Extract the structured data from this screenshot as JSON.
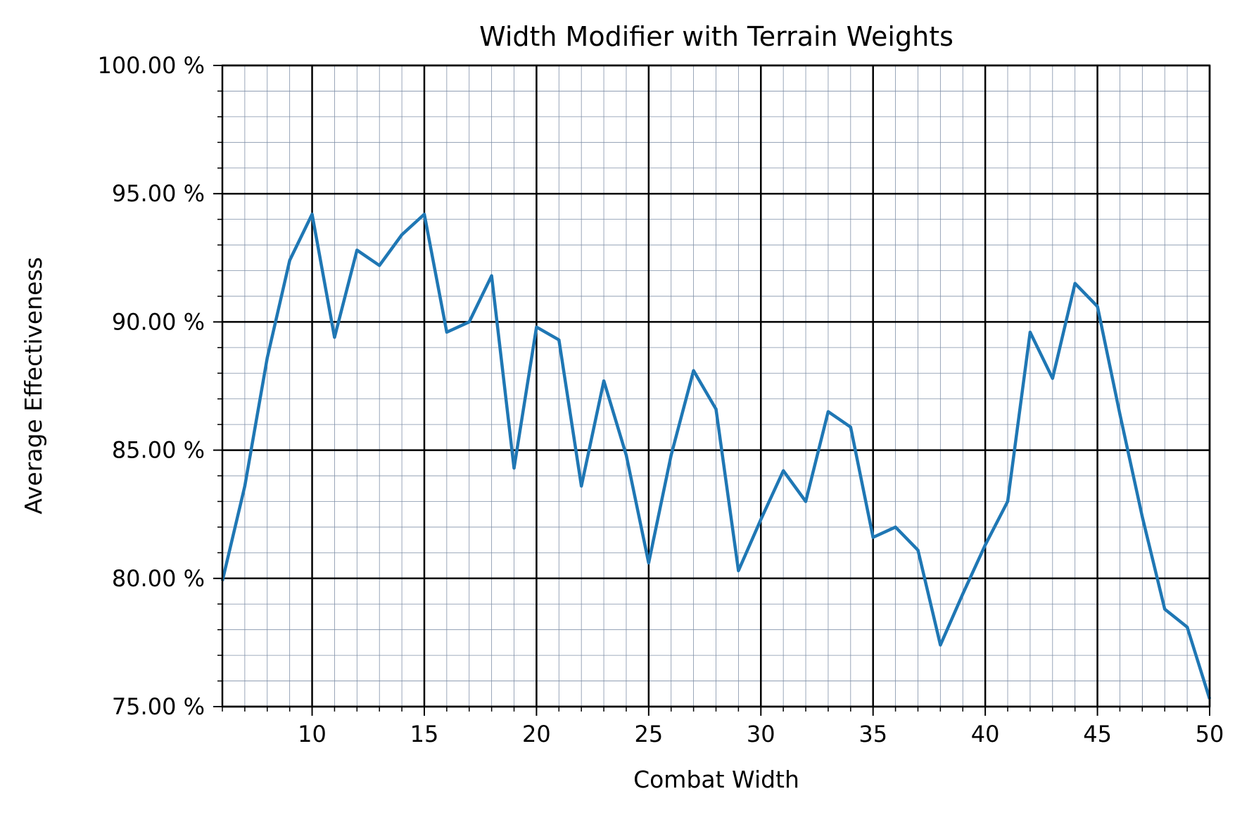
{
  "chart_data": {
    "type": "line",
    "title": "Width Modifier with Terrain Weights",
    "xlabel": "Combat Width",
    "ylabel": "Average Effectiveness",
    "xlim": [
      6,
      50
    ],
    "ylim": [
      75,
      100
    ],
    "x_ticks": [
      10,
      15,
      20,
      25,
      30,
      35,
      40,
      45,
      50
    ],
    "x_tick_labels": [
      "10",
      "15",
      "20",
      "25",
      "30",
      "35",
      "40",
      "45",
      "50"
    ],
    "y_ticks": [
      75,
      80,
      85,
      90,
      95,
      100
    ],
    "y_tick_labels": [
      "75.00 %",
      "80.00 %",
      "85.00 %",
      "90.00 %",
      "95.00 %",
      "100.00 %"
    ],
    "grid": "major and minor",
    "colors": {
      "series": "#1f77b4",
      "major_grid": "#000000",
      "minor_grid": "#8090a8"
    },
    "series": [
      {
        "x": [
          6,
          7,
          8,
          9,
          10,
          11,
          12,
          13,
          14,
          15,
          16,
          17,
          18,
          19,
          20,
          21,
          22,
          23,
          24,
          25,
          26,
          27,
          28,
          29,
          30,
          31,
          32,
          33,
          34,
          35,
          36,
          37,
          38,
          39,
          40,
          41,
          42,
          43,
          44,
          45,
          46,
          47,
          48,
          49,
          50
        ],
        "values": [
          79.9,
          83.6,
          88.6,
          92.4,
          94.2,
          89.4,
          92.8,
          92.2,
          93.4,
          94.2,
          89.6,
          90.0,
          91.8,
          84.3,
          89.8,
          89.3,
          83.6,
          87.7,
          84.8,
          80.6,
          84.8,
          88.1,
          86.6,
          80.3,
          82.3,
          84.2,
          83.0,
          86.5,
          85.9,
          81.6,
          82.0,
          81.1,
          77.4,
          79.4,
          81.3,
          83.0,
          89.6,
          87.8,
          91.5,
          90.6,
          86.4,
          82.4,
          78.8,
          78.1,
          75.3
        ]
      }
    ]
  }
}
